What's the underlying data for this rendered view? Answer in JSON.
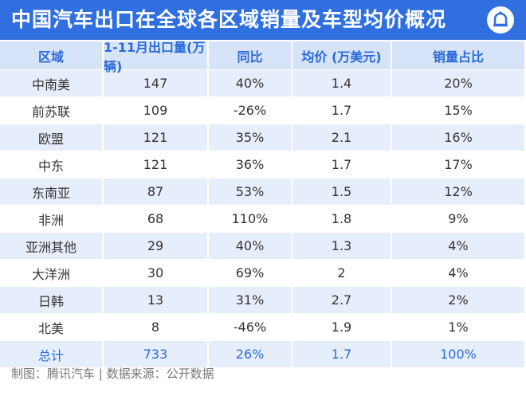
{
  "header": {
    "title": "中国汽车出口在全球各区域销量及车型均价概况"
  },
  "table": {
    "columns": [
      "区域",
      "1-11月出口量(万辆)",
      "同比",
      "均价 (万美元)",
      "销量占比"
    ],
    "rows": [
      [
        "中南美",
        "147",
        "40%",
        "1.4",
        "20%"
      ],
      [
        "前苏联",
        "109",
        "-26%",
        "1.7",
        "15%"
      ],
      [
        "欧盟",
        "121",
        "35%",
        "2.1",
        "16%"
      ],
      [
        "中东",
        "121",
        "36%",
        "1.7",
        "17%"
      ],
      [
        "东南亚",
        "87",
        "53%",
        "1.5",
        "12%"
      ],
      [
        "非洲",
        "68",
        "110%",
        "1.8",
        "9%"
      ],
      [
        "亚洲其他",
        "29",
        "40%",
        "1.3",
        "4%"
      ],
      [
        "大洋洲",
        "30",
        "69%",
        "2",
        "4%"
      ],
      [
        "日韩",
        "13",
        "31%",
        "2.7",
        "2%"
      ],
      [
        "北美",
        "8",
        "-46%",
        "1.9",
        "1%"
      ]
    ],
    "total": [
      "总计",
      "733",
      "26%",
      "1.7",
      "100%"
    ]
  },
  "footer": "制图：腾讯汽车 | 数据来源：公开数据"
}
